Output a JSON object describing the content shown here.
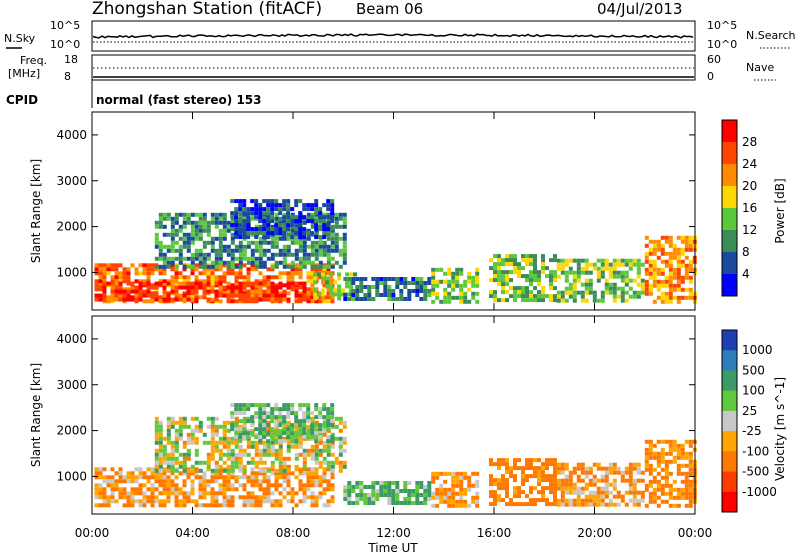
{
  "header": {
    "station": "Zhongshan Station (fitACF)",
    "beam": "Beam 06",
    "date": "04/Jul/2013"
  },
  "side_labels": {
    "nsky": "N.Sky",
    "freq_line1": "Freq.",
    "freq_line2": "[MHz]",
    "cpid": "CPID",
    "nsearch": "N.Search",
    "nave": "Nave"
  },
  "cpid_text": "normal (fast stereo) 153",
  "noise_axis": {
    "left_top": "10^5",
    "left_bottom": "10^0",
    "right_top": "10^5",
    "right_bottom": "10^0"
  },
  "freq_axis": {
    "left_top": "18",
    "left_bottom": "8",
    "right_top": "60",
    "right_bottom": "0"
  },
  "x_axis": {
    "label": "Time UT",
    "ticks": [
      "00:00",
      "04:00",
      "08:00",
      "12:00",
      "16:00",
      "20:00",
      "00:00"
    ]
  },
  "power_colorbar": {
    "label": "Power [dB]",
    "ticks": [
      "4",
      "8",
      "12",
      "16",
      "20",
      "24",
      "28"
    ],
    "colors": [
      "#0000ff",
      "#1a4aa0",
      "#3c8c5a",
      "#5cc83c",
      "#ffd700",
      "#ff8c00",
      "#ff4500",
      "#ff0000"
    ]
  },
  "velocity_colorbar": {
    "label": "Velocity [m s^-1]",
    "ticks": [
      "1000",
      "500",
      "100",
      "25",
      "-25",
      "-100",
      "-500",
      "-1000"
    ],
    "colors": [
      "#1e3fb4",
      "#2e7db8",
      "#3c9b64",
      "#60c83c",
      "#c8c8c8",
      "#ffa500",
      "#ff7800",
      "#ff3c00",
      "#ff0000"
    ]
  },
  "chart_data": [
    {
      "type": "heatmap",
      "title": "Power",
      "xlabel": "Time UT",
      "ylabel": "Slant Range [km]",
      "xlim": [
        0,
        24
      ],
      "ylim": [
        180,
        4500
      ],
      "y_ticks": [
        1000,
        2000,
        3000,
        4000
      ],
      "cbar_label": "Power [dB]",
      "cbar_range": [
        0,
        32
      ],
      "regions": [
        {
          "t0": 0.1,
          "t1": 9.5,
          "r0": 400,
          "r1": 1200,
          "v": 24
        },
        {
          "t0": 0.1,
          "t1": 8.5,
          "r0": 400,
          "r1": 800,
          "v": 28
        },
        {
          "t0": 8.8,
          "t1": 10.5,
          "r0": 400,
          "r1": 1000,
          "v": 16
        },
        {
          "t0": 2.5,
          "t1": 10.0,
          "r0": 1100,
          "r1": 2300,
          "v": 10
        },
        {
          "t0": 5.5,
          "t1": 9.5,
          "r0": 1800,
          "r1": 2600,
          "v": 6
        },
        {
          "t0": 10.0,
          "t1": 13.5,
          "r0": 400,
          "r1": 900,
          "v": 8
        },
        {
          "t0": 13.5,
          "t1": 15.3,
          "r0": 400,
          "r1": 1100,
          "v": 14
        },
        {
          "t0": 15.8,
          "t1": 18.5,
          "r0": 400,
          "r1": 1400,
          "v": 14
        },
        {
          "t0": 18.5,
          "t1": 22.0,
          "r0": 400,
          "r1": 1300,
          "v": 14
        },
        {
          "t0": 22.0,
          "t1": 24.0,
          "r0": 400,
          "r1": 1800,
          "v": 22
        }
      ]
    },
    {
      "type": "heatmap",
      "title": "Velocity",
      "xlabel": "Time UT",
      "ylabel": "Slant Range [km]",
      "xlim": [
        0,
        24
      ],
      "ylim": [
        180,
        4500
      ],
      "y_ticks": [
        1000,
        2000,
        3000,
        4000
      ],
      "cbar_label": "Velocity [m s^-1]",
      "cbar_range": [
        -1000,
        1000
      ],
      "regions": [
        {
          "t0": 0.1,
          "t1": 9.5,
          "r0": 400,
          "r1": 1200,
          "v": -100
        },
        {
          "t0": 2.5,
          "t1": 10.0,
          "r0": 1100,
          "r1": 2300,
          "v": 0
        },
        {
          "t0": 5.5,
          "t1": 9.5,
          "r0": 1800,
          "r1": 2600,
          "v": 100
        },
        {
          "t0": 10.0,
          "t1": 13.5,
          "r0": 400,
          "r1": 900,
          "v": 100
        },
        {
          "t0": 13.5,
          "t1": 15.3,
          "r0": 400,
          "r1": 1100,
          "v": -100
        },
        {
          "t0": 15.8,
          "t1": 18.5,
          "r0": 400,
          "r1": 1400,
          "v": -200
        },
        {
          "t0": 18.5,
          "t1": 22.0,
          "r0": 400,
          "r1": 1300,
          "v": -100
        },
        {
          "t0": 22.0,
          "t1": 24.0,
          "r0": 400,
          "r1": 1800,
          "v": -150
        }
      ]
    }
  ]
}
